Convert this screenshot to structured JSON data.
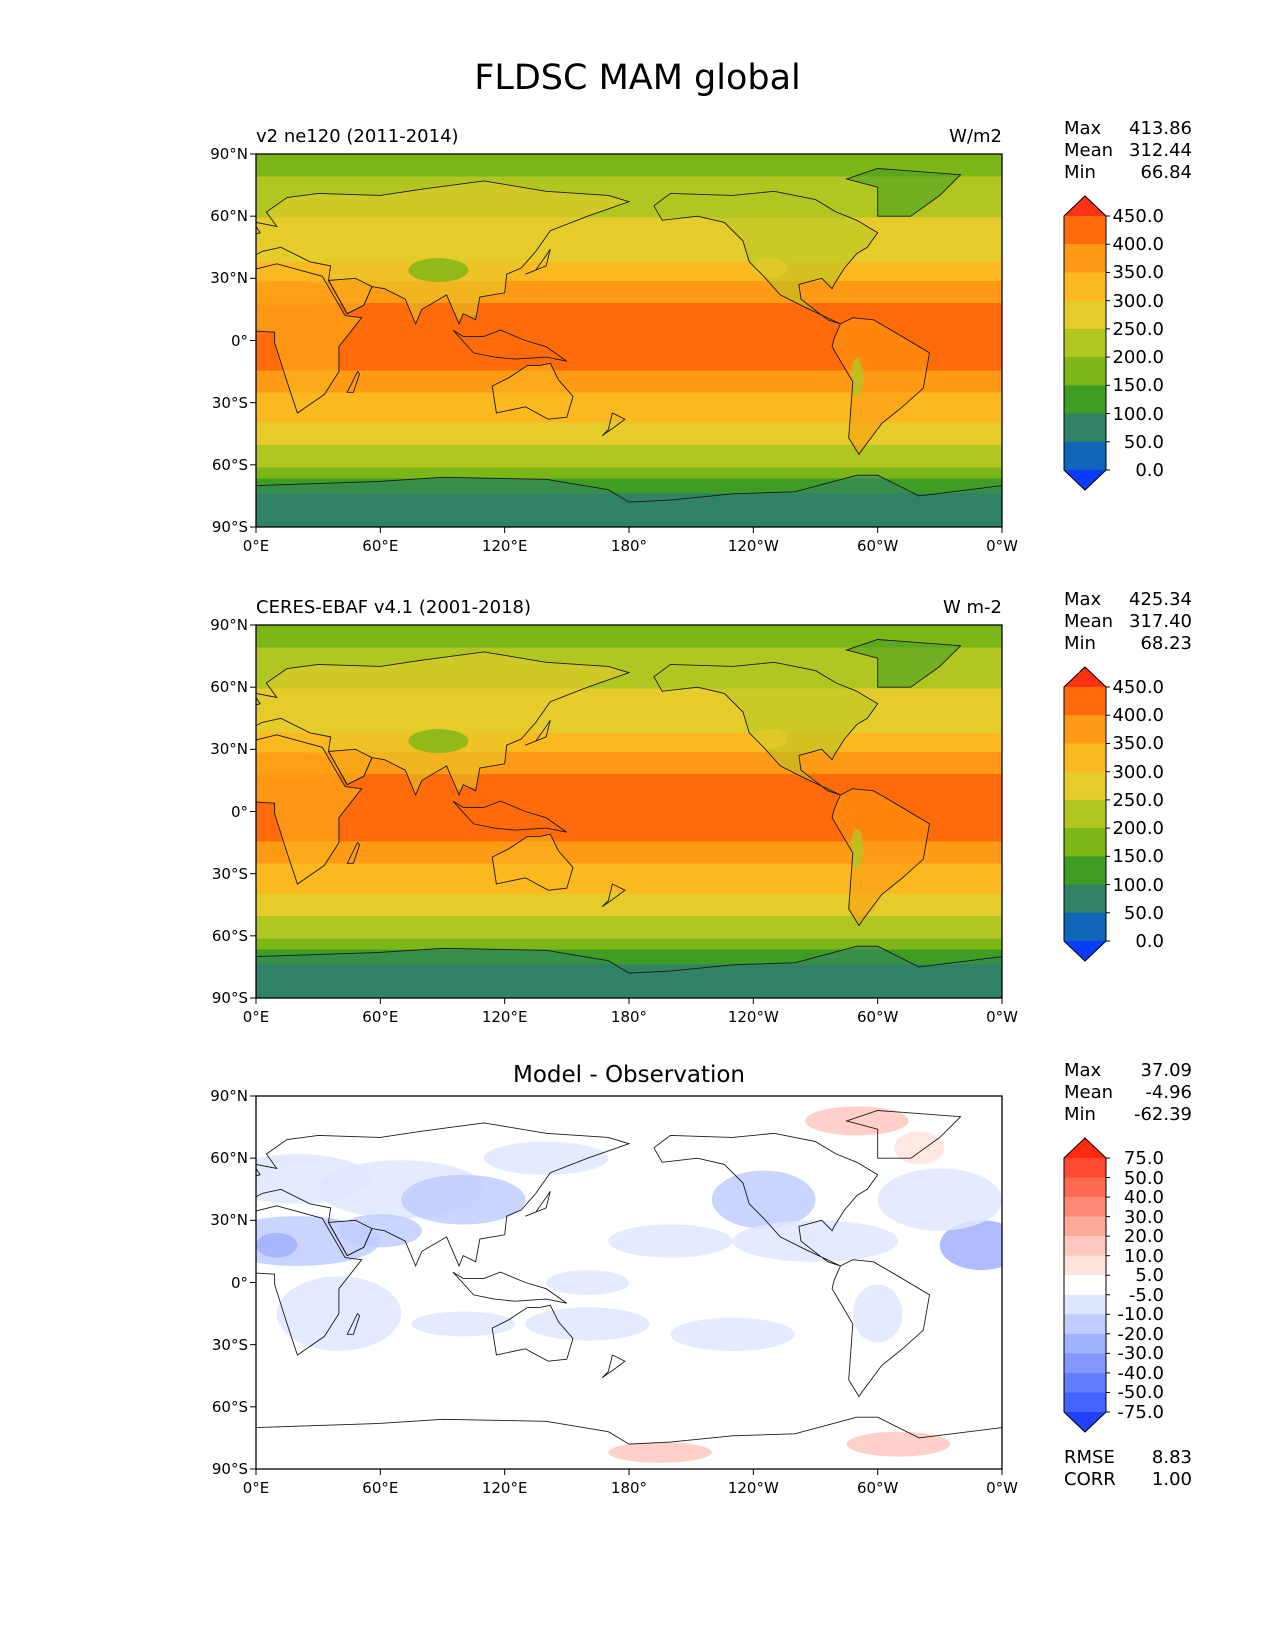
{
  "title": "FLDSC MAM global",
  "lat_ticks": [
    "90°N",
    "60°N",
    "30°N",
    "0°",
    "30°S",
    "60°S",
    "90°S"
  ],
  "lon_ticks": [
    "0°E",
    "60°E",
    "120°E",
    "180°",
    "120°W",
    "60°W",
    "0°W"
  ],
  "colorscale_abs": {
    "labels": [
      "450.0",
      "400.0",
      "350.0",
      "300.0",
      "250.0",
      "200.0",
      "150.0",
      "100.0",
      "50.0",
      "0.0"
    ],
    "colors": [
      "#ff3311",
      "#ff6b0a",
      "#ff9a14",
      "#fbb81f",
      "#e6cc2a",
      "#b2c622",
      "#7cb617",
      "#3f9d25",
      "#2f8267",
      "#0f66b8",
      "#0a3cff"
    ]
  },
  "colorscale_diff": {
    "labels": [
      "75.0",
      "50.0",
      "40.0",
      "30.0",
      "20.0",
      "10.0",
      "5.0",
      "-5.0",
      "-10.0",
      "-20.0",
      "-30.0",
      "-40.0",
      "-50.0",
      "-75.0"
    ],
    "colors": [
      "#ff2a0f",
      "#ff4a32",
      "#ff6a55",
      "#ff8a78",
      "#ffa99b",
      "#ffc8be",
      "#ffe3dd",
      "#ffffff",
      "#dfe6ff",
      "#c0ccff",
      "#a1b2ff",
      "#8298ff",
      "#637eff",
      "#4464ff",
      "#1f40ff"
    ]
  },
  "panels": [
    {
      "left_label": "v2 ne120 (2011-2014)",
      "right_label": "W/m2",
      "center_title": "",
      "stats": [
        {
          "key": "Max",
          "value": "413.86"
        },
        {
          "key": "Mean",
          "value": "312.44"
        },
        {
          "key": "Min",
          "value": "66.84"
        }
      ],
      "extra": []
    },
    {
      "left_label": "CERES-EBAF v4.1 (2001-2018)",
      "right_label": "W m-2",
      "center_title": "",
      "stats": [
        {
          "key": "Max",
          "value": "425.34"
        },
        {
          "key": "Mean",
          "value": "317.40"
        },
        {
          "key": "Min",
          "value": "68.23"
        }
      ],
      "extra": []
    },
    {
      "left_label": "",
      "right_label": "",
      "center_title": "Model - Observation",
      "stats": [
        {
          "key": "Max",
          "value": "37.09"
        },
        {
          "key": "Mean",
          "value": "-4.96"
        },
        {
          "key": "Min",
          "value": "-62.39"
        }
      ],
      "extra": [
        {
          "key": "RMSE",
          "value": "8.83"
        },
        {
          "key": "CORR",
          "value": "1.00"
        }
      ]
    }
  ]
}
